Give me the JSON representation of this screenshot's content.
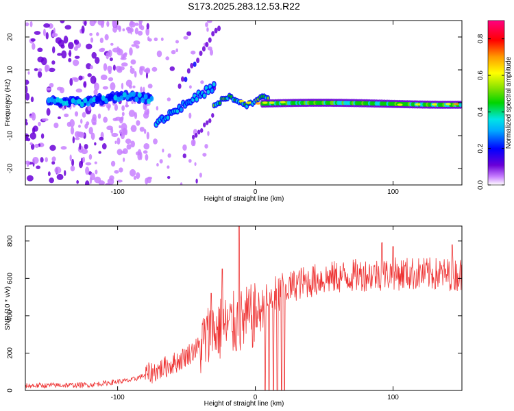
{
  "title": "S173.2025.283.12.53.R22",
  "chart_data": [
    {
      "type": "heatmap",
      "xlabel": "Height of straight line (km)",
      "ylabel": "Frequency (Hz)",
      "xlim": [
        -167,
        150
      ],
      "ylim": [
        -25,
        25
      ],
      "x_ticks": [
        -100,
        0,
        100
      ],
      "y_ticks": [
        -20,
        -10,
        0,
        10,
        20
      ],
      "colorbar": {
        "label": "Normalized spectral amplitude",
        "range": [
          0,
          0.9
        ],
        "ticks": [
          0.0,
          0.2,
          0.4,
          0.6,
          0.8
        ],
        "colors": [
          "#ffffff",
          "#c880ff",
          "#6a00d8",
          "#0000ff",
          "#00aaff",
          "#00e5e5",
          "#00d400",
          "#7be000",
          "#ffff00",
          "#ff9900",
          "#ff0000",
          "#ff0080"
        ]
      },
      "features": [
        {
          "name": "carrier",
          "x_range": [
            -150,
            150
          ],
          "freq_hz": 0,
          "amplitude": [
            0.2,
            0.9
          ]
        },
        {
          "name": "rising branch",
          "x_range": [
            -72,
            -30
          ],
          "freq_hz": [
            -6,
            5
          ],
          "amplitude": [
            0.2,
            0.5
          ]
        },
        {
          "name": "upper branch",
          "x_range": [
            -55,
            -25
          ],
          "freq_hz": [
            5,
            24
          ],
          "amplitude": [
            0.1,
            0.3
          ]
        },
        {
          "name": "lower branch",
          "x_range": [
            -45,
            -30
          ],
          "freq_hz": [
            -11,
            -4
          ],
          "amplitude": [
            0.1,
            0.2
          ]
        },
        {
          "name": "background noise",
          "x_range": [
            -167,
            -80
          ],
          "freq_hz": [
            -25,
            25
          ],
          "amplitude": [
            0.05,
            0.2
          ]
        }
      ]
    },
    {
      "type": "line",
      "xlabel": "Height of straight line (km)",
      "ylabel": "SNR (10 * v/v)",
      "xlim": [
        -167,
        150
      ],
      "ylim": [
        0,
        880
      ],
      "x_ticks": [
        -100,
        0,
        100
      ],
      "y_ticks": [
        0,
        200,
        400,
        600,
        800
      ],
      "color": "#ee3333",
      "baseline_profile": [
        {
          "x": -167,
          "snr": 25
        },
        {
          "x": -120,
          "snr": 30
        },
        {
          "x": -90,
          "snr": 55
        },
        {
          "x": -70,
          "snr": 110
        },
        {
          "x": -55,
          "snr": 160
        },
        {
          "x": -40,
          "snr": 240
        },
        {
          "x": -30,
          "snr": 320
        },
        {
          "x": -20,
          "snr": 340
        },
        {
          "x": -10,
          "snr": 370
        },
        {
          "x": 0,
          "snr": 400
        },
        {
          "x": 10,
          "snr": 470
        },
        {
          "x": 20,
          "snr": 530
        },
        {
          "x": 30,
          "snr": 570
        },
        {
          "x": 50,
          "snr": 600
        },
        {
          "x": 80,
          "snr": 620
        },
        {
          "x": 110,
          "snr": 625
        },
        {
          "x": 150,
          "snr": 620
        }
      ],
      "peaks": [
        {
          "x": -12,
          "snr": 880
        },
        {
          "x": -24,
          "snr": 650
        },
        {
          "x": -32,
          "snr": 520
        },
        {
          "x": 92,
          "snr": 790
        },
        {
          "x": 100,
          "snr": 770
        },
        {
          "x": 143,
          "snr": 780
        }
      ],
      "dropouts": [
        {
          "x": 7,
          "snr": 0
        },
        {
          "x": 10,
          "snr": 0
        },
        {
          "x": 13,
          "snr": 0
        },
        {
          "x": 16,
          "snr": 0
        },
        {
          "x": 19,
          "snr": 0
        },
        {
          "x": 21,
          "snr": 0
        }
      ]
    }
  ]
}
